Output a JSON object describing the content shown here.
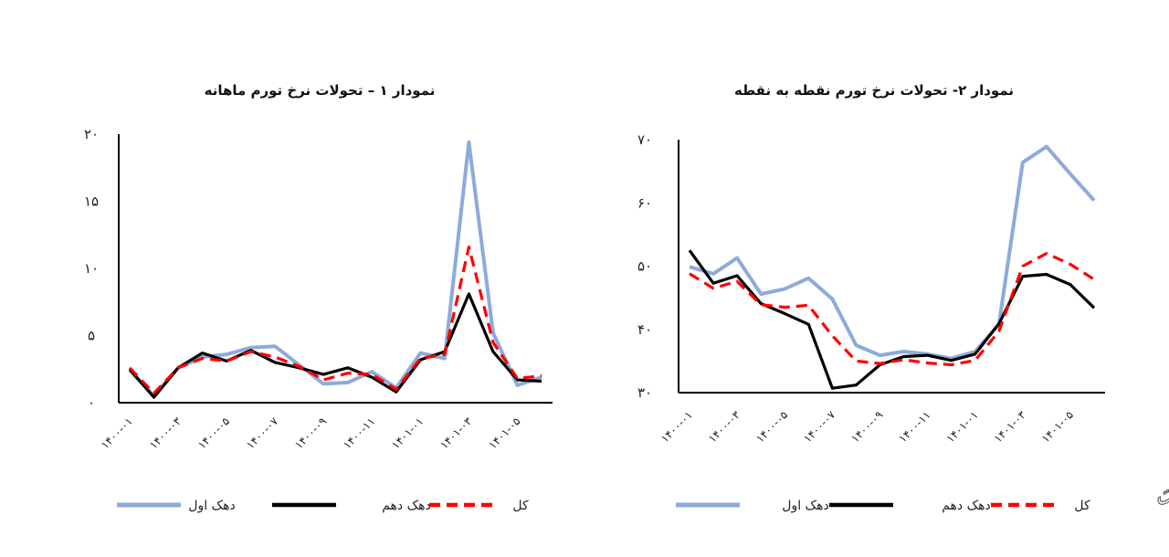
{
  "chart_data": [
    {
      "type": "line",
      "title": "نمودار ۱ – تحولات نرخ تورم ماهانه",
      "xlabel": "",
      "ylabel": "",
      "ylim": [
        0,
        20
      ],
      "yticks": [
        0,
        5,
        10,
        15,
        20
      ],
      "ytick_labels": [
        "۰",
        "۵",
        "۱۰",
        "۱۵",
        "۲۰"
      ],
      "x": [
        "1400-01",
        "1400-02",
        "1400-03",
        "1400-04",
        "1400-05",
        "1400-06",
        "1400-07",
        "1400-08",
        "1400-09",
        "1400-10",
        "1400-11",
        "1400-12",
        "1401-01",
        "1401-02",
        "1401-03",
        "1401-04",
        "1401-05",
        "1401-06"
      ],
      "xtick_labels": [
        "۱۴۰۰-۰۱",
        "۱۴۰۰-۰۳",
        "۱۴۰۰-۰۵",
        "۱۴۰۰-۰۷",
        "۱۴۰۰-۰۹",
        "۱۴۰۰-۱۱",
        "۱۴۰۱-۰۱",
        "۱۴۰۱-۰۳",
        "۱۴۰۱-۰۵"
      ],
      "xtick_index": [
        0,
        2,
        4,
        6,
        8,
        10,
        12,
        14,
        16
      ],
      "series": [
        {
          "name": "دهک اول",
          "color": "#8eaadb",
          "dash": "solid",
          "values": [
            2.4,
            0.5,
            2.6,
            3.4,
            3.6,
            4.1,
            4.2,
            2.8,
            1.4,
            1.5,
            2.3,
            1.1,
            3.7,
            3.3,
            19.4,
            5.2,
            1.3,
            1.9
          ]
        },
        {
          "name": "دهک دهم",
          "color": "#000000",
          "dash": "solid",
          "values": [
            2.5,
            0.4,
            2.6,
            3.7,
            3.1,
            3.9,
            3.0,
            2.6,
            2.1,
            2.6,
            1.9,
            0.8,
            3.2,
            3.8,
            8.1,
            3.8,
            1.7,
            1.6
          ]
        },
        {
          "name": "کل",
          "color": "#ff0000",
          "dash": "dashed",
          "values": [
            2.6,
            0.7,
            2.6,
            3.3,
            3.1,
            3.8,
            3.4,
            2.7,
            1.7,
            2.2,
            2.1,
            1.0,
            3.3,
            3.6,
            11.6,
            4.5,
            1.8,
            2.0
          ]
        }
      ],
      "legend": "bottom"
    },
    {
      "type": "line",
      "title": "نمودار ۲- تحولات نرخ تورم نقطه به نقطه",
      "xlabel": "",
      "ylabel": "",
      "ylim": [
        30,
        70
      ],
      "yticks": [
        30,
        40,
        50,
        60,
        70
      ],
      "ytick_labels": [
        "۳۰",
        "۴۰",
        "۵۰",
        "۶۰",
        "۷۰"
      ],
      "x": [
        "1400-01",
        "1400-02",
        "1400-03",
        "1400-04",
        "1400-05",
        "1400-06",
        "1400-07",
        "1400-08",
        "1400-09",
        "1400-10",
        "1400-11",
        "1400-12",
        "1401-01",
        "1401-02",
        "1401-03",
        "1401-04",
        "1401-05",
        "1401-06"
      ],
      "xtick_labels": [
        "۱۴۰۰-۰۱",
        "۱۴۰۰-۰۳",
        "۱۴۰۰-۰۵",
        "۱۴۰۰-۰۷",
        "۱۴۰۰-۰۹",
        "۱۴۰۰-۱۱",
        "۱۴۰۱-۰۱",
        "۱۴۰۱-۰۳",
        "۱۴۰۱-۰۵"
      ],
      "xtick_index": [
        0,
        2,
        4,
        6,
        8,
        10,
        12,
        14,
        16
      ],
      "series": [
        {
          "name": "دهک اول",
          "color": "#8eaadb",
          "dash": "solid",
          "values": [
            49.9,
            48.8,
            51.3,
            45.6,
            46.4,
            48.1,
            44.8,
            37.5,
            35.9,
            36.5,
            36.1,
            35.4,
            36.5,
            40.8,
            66.4,
            68.9,
            64.6,
            60.4
          ]
        },
        {
          "name": "دهک دهم",
          "color": "#000000",
          "dash": "solid",
          "values": [
            52.5,
            47.3,
            48.5,
            44.1,
            42.5,
            40.8,
            30.7,
            31.2,
            34.4,
            35.7,
            35.9,
            35.1,
            36.1,
            40.9,
            48.4,
            48.7,
            47.1,
            43.4
          ]
        },
        {
          "name": "کل",
          "color": "#ff0000",
          "dash": "dashed",
          "values": [
            48.8,
            46.5,
            47.6,
            43.9,
            43.5,
            43.8,
            39.0,
            35.0,
            34.6,
            35.2,
            34.7,
            34.4,
            35.1,
            39.7,
            50.0,
            52.0,
            50.3,
            47.9
          ]
        }
      ],
      "legend": "bottom"
    }
  ],
  "logo": {
    "text": "ایران اکونومیست",
    "icon": "logo-icon"
  }
}
